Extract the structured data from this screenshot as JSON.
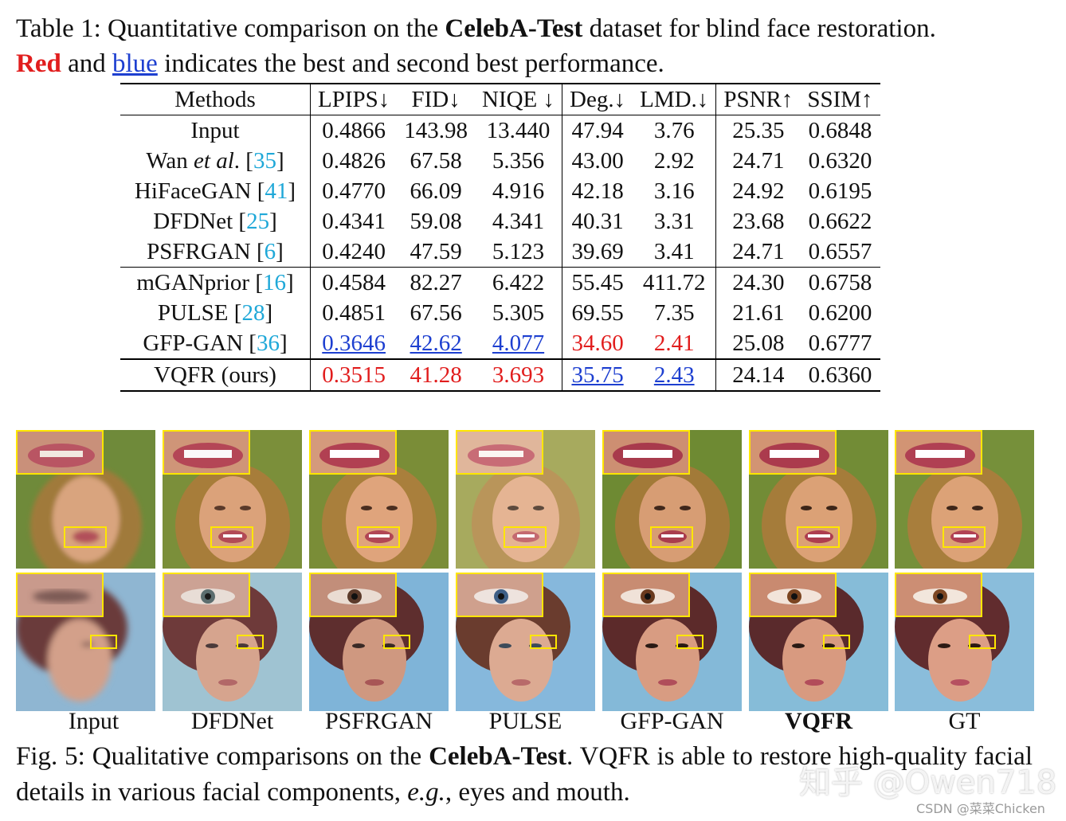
{
  "caption_top": {
    "prefix": "Table 1: Quantitative comparison on the ",
    "dataset": "CelebA-Test",
    "suffix": " dataset for blind face restoration.",
    "line2_red": "Red",
    "line2_and": " and ",
    "line2_blue": "blue",
    "line2_rest": " indicates the best and second best performance."
  },
  "table": {
    "headers": [
      "Methods",
      "LPIPS↓",
      "FID↓",
      "NIQE ↓",
      "Deg.↓",
      "LMD.↓",
      "PSNR↑",
      "SSIM↑"
    ],
    "rows": [
      {
        "name": "Input",
        "cite": "",
        "vals": [
          "0.4866",
          "143.98",
          "13.440",
          "47.94",
          "3.76",
          "25.35",
          "0.6848"
        ]
      },
      {
        "name_a": "Wan ",
        "name_i": "et al",
        "name_b": ". [",
        "cite": "35",
        "name_c": "]",
        "vals": [
          "0.4826",
          "67.58",
          "5.356",
          "43.00",
          "2.92",
          "24.71",
          "0.6320"
        ]
      },
      {
        "name": "HiFaceGAN [",
        "cite": "41",
        "close": "]",
        "vals": [
          "0.4770",
          "66.09",
          "4.916",
          "42.18",
          "3.16",
          "24.92",
          "0.6195"
        ]
      },
      {
        "name": "DFDNet [",
        "cite": "25",
        "close": "]",
        "vals": [
          "0.4341",
          "59.08",
          "4.341",
          "40.31",
          "3.31",
          "23.68",
          "0.6622"
        ]
      },
      {
        "name": "PSFRGAN [",
        "cite": "6",
        "close": "]",
        "vals": [
          "0.4240",
          "47.59",
          "5.123",
          "39.69",
          "3.41",
          "24.71",
          "0.6557"
        ]
      },
      {
        "name": "mGANprior [",
        "cite": "16",
        "close": "]",
        "vals": [
          "0.4584",
          "82.27",
          "6.422",
          "55.45",
          "411.72",
          "24.30",
          "0.6758"
        ]
      },
      {
        "name": "PULSE [",
        "cite": "28",
        "close": "]",
        "vals": [
          "0.4851",
          "67.56",
          "5.305",
          "69.55",
          "7.35",
          "21.61",
          "0.6200"
        ]
      },
      {
        "name": "GFP-GAN [",
        "cite": "36",
        "close": "]",
        "vals": [
          "0.3646",
          "42.62",
          "4.077",
          "34.60",
          "2.41",
          "25.08",
          "0.6777"
        ]
      },
      {
        "name": "VQFR (ours)",
        "vals": [
          "0.3515",
          "41.28",
          "3.693",
          "35.75",
          "2.43",
          "24.14",
          "0.6360"
        ]
      }
    ]
  },
  "figure": {
    "labels": [
      "Input",
      "DFDNet",
      "PSFRGAN",
      "PULSE",
      "GFP-GAN",
      "VQFR",
      "GT"
    ]
  },
  "caption_bot": {
    "prefix": "Fig. 5: Qualitative comparisons on the ",
    "dataset": "CelebA-Test",
    "mid": ". VQFR is able to restore high-quality facial details in various facial components, ",
    "eg": "e.g.",
    "end": ", eyes and mouth."
  },
  "watermarks": {
    "zhihu": "知乎 @Owen718",
    "csdn": "CSDN @菜菜Chicken"
  },
  "colors": {
    "best": "#e11d1d",
    "second": "#1d3fd0",
    "cite": "#1fa8d8",
    "zoom_box": "#ffe600"
  }
}
